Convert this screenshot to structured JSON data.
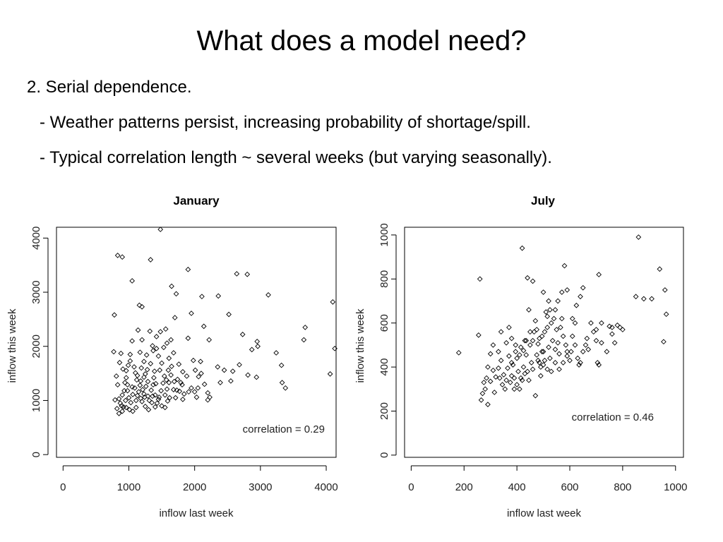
{
  "slide": {
    "title": "What does a model need?",
    "bullets": [
      "2. Serial dependence.",
      "- Weather patterns persist, increasing probability of shortage/spill.",
      "- Typical correlation length ~ several weeks (but varying seasonally)."
    ]
  },
  "chart_data": [
    {
      "type": "scatter",
      "title": "January",
      "xlabel": "inflow last week",
      "ylabel": "inflow this week",
      "xlim": [
        -100,
        4150
      ],
      "ylim": [
        -50,
        4200
      ],
      "xticks": [
        0,
        1000,
        2000,
        3000,
        4000
      ],
      "yticks": [
        0,
        1000,
        2000,
        3000,
        4000
      ],
      "annotation": "correlation = 0.29",
      "marker": "open-diamond",
      "points": [
        [
          780,
          2580
        ],
        [
          830,
          3680
        ],
        [
          900,
          3650
        ],
        [
          1050,
          3210
        ],
        [
          1160,
          2760
        ],
        [
          1200,
          2730
        ],
        [
          1330,
          3600
        ],
        [
          1480,
          4160
        ],
        [
          1900,
          3420
        ],
        [
          1650,
          3110
        ],
        [
          1720,
          2970
        ],
        [
          2110,
          2920
        ],
        [
          2640,
          3340
        ],
        [
          2800,
          3330
        ],
        [
          3120,
          2950
        ],
        [
          2360,
          2930
        ],
        [
          3680,
          2350
        ],
        [
          3660,
          2120
        ],
        [
          3240,
          1880
        ],
        [
          2520,
          2590
        ],
        [
          2950,
          2090
        ],
        [
          2730,
          2220
        ],
        [
          4100,
          2820
        ],
        [
          4130,
          1960
        ],
        [
          4060,
          1490
        ],
        [
          3330,
          1330
        ],
        [
          3380,
          1230
        ],
        [
          3320,
          1650
        ],
        [
          2940,
          1430
        ],
        [
          2810,
          1470
        ],
        [
          2550,
          1360
        ],
        [
          2390,
          1330
        ],
        [
          2350,
          1620
        ],
        [
          2200,
          1140
        ],
        [
          2200,
          1010
        ],
        [
          2230,
          1060
        ],
        [
          2140,
          2370
        ],
        [
          2050,
          1230
        ],
        [
          1950,
          2610
        ],
        [
          1900,
          2150
        ],
        [
          1820,
          1530
        ],
        [
          1820,
          1020
        ],
        [
          1760,
          1670
        ],
        [
          1700,
          2530
        ],
        [
          1640,
          2120
        ],
        [
          1580,
          2060
        ],
        [
          1530,
          1980
        ],
        [
          1480,
          2270
        ],
        [
          1450,
          1820
        ],
        [
          1420,
          1960
        ],
        [
          1390,
          1540
        ],
        [
          1360,
          2010
        ],
        [
          1320,
          2280
        ],
        [
          1270,
          1840
        ],
        [
          1250,
          1490
        ],
        [
          1200,
          2120
        ],
        [
          1170,
          1890
        ],
        [
          1140,
          2300
        ],
        [
          1100,
          1510
        ],
        [
          1080,
          1620
        ],
        [
          1050,
          2100
        ],
        [
          1020,
          1850
        ],
        [
          990,
          1650
        ],
        [
          960,
          1420
        ],
        [
          940,
          1330
        ],
        [
          910,
          1580
        ],
        [
          880,
          1870
        ],
        [
          860,
          1700
        ],
        [
          830,
          1290
        ],
        [
          810,
          1450
        ],
        [
          790,
          1010
        ],
        [
          770,
          1900
        ],
        [
          850,
          1030
        ],
        [
          870,
          950
        ],
        [
          890,
          900
        ],
        [
          920,
          880
        ],
        [
          950,
          1000
        ],
        [
          980,
          1180
        ],
        [
          1000,
          1050
        ],
        [
          1030,
          960
        ],
        [
          1060,
          1110
        ],
        [
          1090,
          1230
        ],
        [
          1110,
          1000
        ],
        [
          1130,
          1090
        ],
        [
          1150,
          1160
        ],
        [
          1180,
          1040
        ],
        [
          1200,
          980
        ],
        [
          1230,
          1120
        ],
        [
          1260,
          1260
        ],
        [
          1290,
          1080
        ],
        [
          1310,
          1000
        ],
        [
          1340,
          1190
        ],
        [
          1370,
          1290
        ],
        [
          1400,
          1100
        ],
        [
          1430,
          950
        ],
        [
          1460,
          1060
        ],
        [
          1490,
          1180
        ],
        [
          1520,
          1320
        ],
        [
          1550,
          1100
        ],
        [
          1580,
          1210
        ],
        [
          1610,
          1330
        ],
        [
          1640,
          1470
        ],
        [
          1680,
          1200
        ],
        [
          1710,
          1050
        ],
        [
          1740,
          1390
        ],
        [
          1770,
          1170
        ],
        [
          1810,
          1290
        ],
        [
          1840,
          1120
        ],
        [
          1880,
          1450
        ],
        [
          1910,
          1160
        ],
        [
          1950,
          1230
        ],
        [
          2000,
          1160
        ],
        [
          2030,
          1060
        ],
        [
          2060,
          1440
        ],
        [
          2100,
          1500
        ],
        [
          2150,
          1300
        ],
        [
          1250,
          890
        ],
        [
          1300,
          830
        ],
        [
          1350,
          960
        ],
        [
          1400,
          880
        ],
        [
          1450,
          1020
        ],
        [
          1500,
          900
        ],
        [
          1550,
          870
        ],
        [
          1590,
          990
        ],
        [
          1620,
          1050
        ],
        [
          1110,
          870
        ],
        [
          1060,
          800
        ],
        [
          1010,
          830
        ],
        [
          960,
          870
        ],
        [
          900,
          800
        ],
        [
          850,
          760
        ],
        [
          820,
          850
        ],
        [
          1180,
          1360
        ],
        [
          1230,
          1430
        ],
        [
          1280,
          1570
        ],
        [
          1330,
          1680
        ],
        [
          1380,
          1420
        ],
        [
          1410,
          1310
        ],
        [
          1470,
          1560
        ],
        [
          1500,
          1690
        ],
        [
          1540,
          1450
        ],
        [
          1570,
          1380
        ],
        [
          1600,
          1560
        ],
        [
          1650,
          1630
        ],
        [
          2450,
          1560
        ],
        [
          2580,
          1540
        ],
        [
          2680,
          1660
        ],
        [
          2870,
          1940
        ],
        [
          2960,
          2000
        ],
        [
          1980,
          1740
        ],
        [
          2090,
          1720
        ],
        [
          2220,
          2120
        ],
        [
          1730,
          1190
        ],
        [
          1690,
          1350
        ],
        [
          1790,
          1330
        ],
        [
          2010,
          1560
        ],
        [
          1170,
          1280
        ],
        [
          1210,
          1200
        ],
        [
          1240,
          1060
        ],
        [
          1290,
          1350
        ],
        [
          1360,
          1080
        ],
        [
          1120,
          1380
        ],
        [
          1050,
          1250
        ],
        [
          980,
          1290
        ],
        [
          930,
          1180
        ],
        [
          900,
          1100
        ],
        [
          1230,
          1720
        ],
        [
          1370,
          1920
        ],
        [
          1420,
          2180
        ],
        [
          1560,
          2320
        ],
        [
          1610,
          1780
        ],
        [
          1680,
          1880
        ],
        [
          1130,
          1460
        ],
        [
          1190,
          1600
        ],
        [
          1020,
          1730
        ],
        [
          960,
          1550
        ]
      ]
    },
    {
      "type": "scatter",
      "title": "July",
      "xlabel": "inflow last week",
      "ylabel": "inflow this week",
      "xlim": [
        -25,
        1030
      ],
      "ylim": [
        -10,
        1035
      ],
      "xticks": [
        0,
        200,
        400,
        600,
        800,
        1000
      ],
      "yticks": [
        0,
        200,
        400,
        600,
        800,
        1000
      ],
      "annotation": "correlation = 0.46",
      "marker": "open-diamond",
      "points": [
        [
          180,
          465
        ],
        [
          255,
          545
        ],
        [
          260,
          800
        ],
        [
          265,
          250
        ],
        [
          280,
          300
        ],
        [
          290,
          230
        ],
        [
          300,
          335
        ],
        [
          310,
          385
        ],
        [
          315,
          285
        ],
        [
          320,
          355
        ],
        [
          330,
          395
        ],
        [
          335,
          350
        ],
        [
          340,
          430
        ],
        [
          345,
          320
        ],
        [
          350,
          365
        ],
        [
          355,
          300
        ],
        [
          360,
          340
        ],
        [
          365,
          395
        ],
        [
          370,
          450
        ],
        [
          375,
          330
        ],
        [
          380,
          360
        ],
        [
          385,
          410
        ],
        [
          390,
          350
        ],
        [
          395,
          470
        ],
        [
          400,
          440
        ],
        [
          405,
          380
        ],
        [
          410,
          300
        ],
        [
          415,
          490
        ],
        [
          420,
          340
        ],
        [
          425,
          400
        ],
        [
          430,
          520
        ],
        [
          435,
          455
        ],
        [
          440,
          380
        ],
        [
          445,
          660
        ],
        [
          450,
          500
        ],
        [
          455,
          420
        ],
        [
          460,
          390
        ],
        [
          465,
          560
        ],
        [
          470,
          610
        ],
        [
          475,
          455
        ],
        [
          480,
          505
        ],
        [
          485,
          420
        ],
        [
          490,
          360
        ],
        [
          495,
          540
        ],
        [
          500,
          470
        ],
        [
          505,
          430
        ],
        [
          510,
          650
        ],
        [
          515,
          580
        ],
        [
          520,
          490
        ],
        [
          525,
          440
        ],
        [
          530,
          600
        ],
        [
          535,
          520
        ],
        [
          540,
          620
        ],
        [
          545,
          480
        ],
        [
          550,
          570
        ],
        [
          555,
          510
        ],
        [
          560,
          460
        ],
        [
          565,
          580
        ],
        [
          570,
          620
        ],
        [
          575,
          540
        ],
        [
          580,
          860
        ],
        [
          585,
          500
        ],
        [
          590,
          470
        ],
        [
          600,
          430
        ],
        [
          610,
          540
        ],
        [
          620,
          600
        ],
        [
          630,
          440
        ],
        [
          640,
          420
        ],
        [
          650,
          760
        ],
        [
          660,
          500
        ],
        [
          670,
          480
        ],
        [
          690,
          560
        ],
        [
          700,
          520
        ],
        [
          710,
          820
        ],
        [
          720,
          600
        ],
        [
          740,
          470
        ],
        [
          750,
          585
        ],
        [
          760,
          550
        ],
        [
          780,
          590
        ],
        [
          790,
          580
        ],
        [
          800,
          570
        ],
        [
          850,
          720
        ],
        [
          860,
          990
        ],
        [
          880,
          710
        ],
        [
          910,
          710
        ],
        [
          940,
          845
        ],
        [
          955,
          515
        ],
        [
          960,
          750
        ],
        [
          965,
          640
        ],
        [
          330,
          470
        ],
        [
          340,
          560
        ],
        [
          360,
          510
        ],
        [
          370,
          580
        ],
        [
          380,
          530
        ],
        [
          395,
          500
        ],
        [
          410,
          455
        ],
        [
          425,
          475
        ],
        [
          435,
          520
        ],
        [
          450,
          560
        ],
        [
          460,
          520
        ],
        [
          475,
          570
        ],
        [
          485,
          530
        ],
        [
          495,
          470
        ],
        [
          505,
          560
        ],
        [
          515,
          630
        ],
        [
          525,
          660
        ],
        [
          545,
          660
        ],
        [
          555,
          700
        ],
        [
          570,
          740
        ],
        [
          590,
          750
        ],
        [
          610,
          620
        ],
        [
          625,
          680
        ],
        [
          640,
          720
        ],
        [
          680,
          600
        ],
        [
          700,
          570
        ],
        [
          720,
          510
        ],
        [
          310,
          500
        ],
        [
          300,
          460
        ],
        [
          290,
          400
        ],
        [
          285,
          350
        ],
        [
          275,
          330
        ],
        [
          270,
          280
        ],
        [
          420,
          940
        ],
        [
          440,
          805
        ],
        [
          460,
          790
        ],
        [
          500,
          740
        ],
        [
          520,
          700
        ],
        [
          380,
          420
        ],
        [
          390,
          300
        ],
        [
          400,
          320
        ],
        [
          415,
          350
        ],
        [
          430,
          370
        ],
        [
          445,
          340
        ],
        [
          470,
          270
        ],
        [
          480,
          430
        ],
        [
          490,
          400
        ],
        [
          500,
          410
        ],
        [
          515,
          390
        ],
        [
          530,
          380
        ],
        [
          545,
          420
        ],
        [
          560,
          390
        ],
        [
          575,
          420
        ],
        [
          590,
          450
        ],
        [
          605,
          470
        ],
        [
          620,
          500
        ],
        [
          635,
          410
        ],
        [
          650,
          470
        ],
        [
          665,
          530
        ],
        [
          705,
          420
        ],
        [
          710,
          410
        ],
        [
          760,
          580
        ],
        [
          770,
          510
        ]
      ]
    }
  ]
}
